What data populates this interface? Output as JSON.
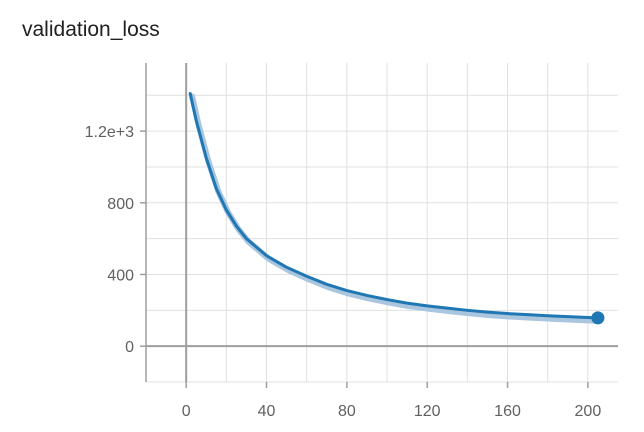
{
  "chart_data": {
    "title": "validation_loss",
    "type": "line",
    "xlabel": "",
    "ylabel": "",
    "xlim": [
      -20,
      215
    ],
    "ylim": [
      -200,
      1580
    ],
    "x_ticks": [
      0,
      40,
      80,
      120,
      160,
      200
    ],
    "x_tick_labels": [
      "0",
      "40",
      "80",
      "120",
      "160",
      "200"
    ],
    "y_ticks": [
      0,
      400,
      800,
      1200
    ],
    "y_tick_labels": [
      "0",
      "400",
      "800",
      "1.2e+3"
    ],
    "grid": true,
    "series": [
      {
        "color": "#1f77b4",
        "shadow_color": "#a9c6de",
        "x": [
          2,
          5,
          10,
          15,
          20,
          25,
          30,
          40,
          50,
          60,
          70,
          80,
          90,
          100,
          110,
          120,
          130,
          140,
          150,
          160,
          170,
          180,
          190,
          200,
          205
        ],
        "y": [
          1410,
          1260,
          1050,
          880,
          760,
          670,
          600,
          505,
          440,
          390,
          345,
          310,
          283,
          260,
          240,
          225,
          212,
          200,
          190,
          182,
          176,
          170,
          165,
          160,
          158
        ],
        "end_marker": true
      }
    ]
  }
}
